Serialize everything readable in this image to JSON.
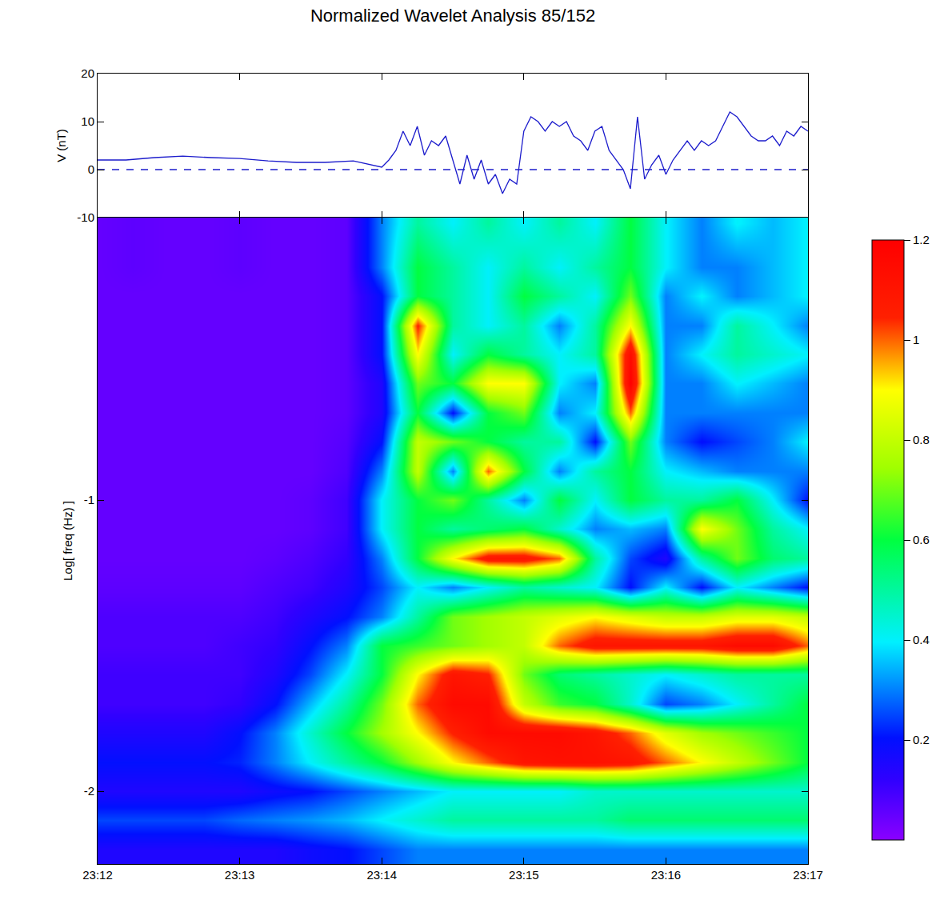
{
  "chart_data": [
    {
      "type": "line",
      "title": "Normalized Wavelet Analysis 85/152",
      "y_label": "V (nT)",
      "xlim": [
        1392,
        1397
      ],
      "xticks": [
        1392,
        1393,
        1394,
        1395,
        1396,
        1397
      ],
      "ylim": [
        -10,
        20
      ],
      "yticks": [
        -10,
        0,
        10,
        20
      ],
      "tick_labels": "y",
      "grid": false,
      "series": [
        {
          "color": "#1c1ccc",
          "line_style": "solid",
          "x": [
            1392.0,
            1392.2,
            1392.4,
            1392.6,
            1392.8,
            1393.0,
            1393.2,
            1393.4,
            1393.6,
            1393.8,
            1394.0,
            1394.05,
            1394.1,
            1394.15,
            1394.2,
            1394.25,
            1394.3,
            1394.35,
            1394.4,
            1394.45,
            1394.5,
            1394.55,
            1394.6,
            1394.65,
            1394.7,
            1394.75,
            1394.8,
            1394.85,
            1394.9,
            1394.95,
            1395.0,
            1395.05,
            1395.1,
            1395.15,
            1395.2,
            1395.25,
            1395.3,
            1395.35,
            1395.4,
            1395.45,
            1395.5,
            1395.55,
            1395.6,
            1395.65,
            1395.7,
            1395.75,
            1395.8,
            1395.85,
            1395.9,
            1395.95,
            1396.0,
            1396.05,
            1396.1,
            1396.15,
            1396.2,
            1396.25,
            1396.3,
            1396.35,
            1396.4,
            1396.45,
            1396.5,
            1396.55,
            1396.6,
            1396.65,
            1396.7,
            1396.75,
            1396.8,
            1396.85,
            1396.9,
            1396.95,
            1397.0
          ],
          "values": [
            2,
            2,
            2.5,
            2.8,
            2.5,
            2.3,
            1.8,
            1.5,
            1.5,
            1.8,
            0.5,
            2,
            4,
            8,
            5,
            9,
            3,
            6,
            5,
            7,
            2,
            -3,
            3,
            -2,
            2,
            -3,
            -1,
            -5,
            -2,
            -3,
            8,
            11,
            10,
            8,
            10,
            9,
            10,
            7,
            6,
            4,
            8,
            9,
            4,
            2,
            0,
            -4,
            11,
            -2,
            1,
            3,
            -1,
            2,
            4,
            6,
            4,
            6,
            5,
            6,
            9,
            12,
            11,
            9,
            7,
            6,
            6,
            7,
            5,
            8,
            7,
            9,
            8
          ]
        },
        {
          "color": "#1c1ccc",
          "line_style": "dash",
          "x": [
            1392,
            1397
          ],
          "values": [
            0,
            0
          ]
        }
      ]
    },
    {
      "type": "heatmap",
      "y_label": "Log[ freq (Hz) ]",
      "xlim": [
        1392,
        1397
      ],
      "xticks": [
        {
          "value": 1392,
          "label": "23:12"
        },
        {
          "value": 1393,
          "label": "23:13"
        },
        {
          "value": 1394,
          "label": "23:14"
        },
        {
          "value": 1395,
          "label": "23:15"
        },
        {
          "value": 1396,
          "label": "23:16"
        },
        {
          "value": 1397,
          "label": "23:17"
        }
      ],
      "ylim": [
        -2.25,
        -0.03
      ],
      "yticks": [
        -2,
        -1
      ],
      "grid": false,
      "zlim": [
        0,
        1.2
      ],
      "zticks": [
        0.2,
        0.4,
        0.6,
        0.8,
        1,
        1.2
      ],
      "x": [
        1392,
        1392.25,
        1392.5,
        1392.75,
        1393,
        1393.25,
        1393.5,
        1393.75,
        1394,
        1394.25,
        1394.5,
        1394.75,
        1395,
        1395.25,
        1395.5,
        1395.75,
        1396,
        1396.25,
        1396.5,
        1396.75,
        1397
      ],
      "y": [
        -2.2,
        -2.1,
        -2.0,
        -1.9,
        -1.8,
        -1.7,
        -1.6,
        -1.5,
        -1.4,
        -1.3,
        -1.2,
        -1.1,
        -1.0,
        -0.9,
        -0.8,
        -0.7,
        -0.6,
        -0.5,
        -0.4,
        -0.3,
        -0.2,
        -0.05
      ],
      "cells": [
        [
          0.15,
          0.15,
          0.15,
          0.15,
          0.15,
          0.15,
          0.18,
          0.2,
          0.25,
          0.3,
          0.3,
          0.3,
          0.3,
          0.3,
          0.3,
          0.3,
          0.3,
          0.3,
          0.3,
          0.3,
          0.3
        ],
        [
          0.25,
          0.25,
          0.25,
          0.25,
          0.28,
          0.3,
          0.32,
          0.35,
          0.4,
          0.45,
          0.5,
          0.5,
          0.5,
          0.5,
          0.5,
          0.55,
          0.55,
          0.55,
          0.55,
          0.55,
          0.55
        ],
        [
          0.15,
          0.15,
          0.15,
          0.15,
          0.15,
          0.18,
          0.2,
          0.25,
          0.3,
          0.35,
          0.4,
          0.4,
          0.4,
          0.4,
          0.45,
          0.45,
          0.45,
          0.45,
          0.45,
          0.45,
          0.45
        ],
        [
          0.2,
          0.2,
          0.2,
          0.2,
          0.22,
          0.3,
          0.4,
          0.5,
          0.6,
          0.75,
          0.9,
          1.0,
          1.1,
          1.12,
          1.12,
          1.1,
          1.0,
          0.9,
          0.8,
          0.7,
          0.6
        ],
        [
          0.15,
          0.15,
          0.15,
          0.15,
          0.2,
          0.3,
          0.45,
          0.6,
          0.75,
          0.9,
          1.05,
          1.15,
          1.15,
          1.15,
          1.1,
          1.0,
          0.85,
          0.75,
          0.7,
          0.65,
          0.6
        ],
        [
          0.1,
          0.1,
          0.1,
          0.1,
          0.12,
          0.2,
          0.35,
          0.5,
          0.7,
          1.0,
          1.15,
          1.15,
          0.8,
          0.65,
          0.6,
          0.45,
          0.25,
          0.3,
          0.4,
          0.5,
          0.6
        ],
        [
          0.1,
          0.1,
          0.1,
          0.1,
          0.1,
          0.15,
          0.25,
          0.4,
          0.6,
          0.9,
          1.1,
          1.05,
          0.7,
          0.55,
          0.5,
          0.45,
          0.4,
          0.45,
          0.5,
          0.5,
          0.5
        ],
        [
          0.08,
          0.08,
          0.08,
          0.08,
          0.1,
          0.12,
          0.2,
          0.3,
          0.6,
          0.65,
          0.7,
          0.75,
          0.8,
          1.0,
          1.1,
          1.1,
          1.1,
          1.1,
          1.15,
          1.15,
          1.0
        ],
        [
          0.08,
          0.08,
          0.08,
          0.08,
          0.08,
          0.1,
          0.15,
          0.2,
          0.3,
          0.5,
          0.7,
          0.75,
          0.8,
          0.85,
          0.9,
          0.85,
          0.8,
          0.8,
          0.85,
          0.85,
          0.8
        ],
        [
          0.06,
          0.06,
          0.06,
          0.06,
          0.06,
          0.08,
          0.1,
          0.15,
          0.25,
          0.4,
          0.3,
          0.4,
          0.5,
          0.45,
          0.4,
          0.2,
          0.4,
          0.2,
          0.4,
          0.3,
          0.2
        ],
        [
          0.05,
          0.05,
          0.05,
          0.05,
          0.05,
          0.06,
          0.08,
          0.12,
          0.3,
          0.6,
          0.9,
          1.1,
          1.1,
          1.0,
          0.5,
          0.25,
          0.15,
          0.5,
          0.7,
          0.55,
          0.5
        ],
        [
          0.05,
          0.05,
          0.05,
          0.05,
          0.05,
          0.05,
          0.06,
          0.1,
          0.4,
          0.6,
          0.5,
          0.55,
          0.6,
          0.45,
          0.3,
          0.35,
          0.3,
          0.9,
          0.7,
          0.5,
          0.4
        ],
        [
          0.05,
          0.05,
          0.05,
          0.05,
          0.05,
          0.05,
          0.06,
          0.1,
          0.4,
          0.6,
          0.7,
          0.5,
          0.3,
          0.6,
          0.4,
          0.6,
          0.5,
          0.5,
          0.6,
          0.4,
          0.2
        ],
        [
          0.05,
          0.05,
          0.05,
          0.05,
          0.05,
          0.05,
          0.05,
          0.08,
          0.3,
          0.8,
          0.3,
          1.0,
          0.6,
          0.3,
          0.5,
          0.6,
          0.4,
          0.35,
          0.3,
          0.3,
          0.3
        ],
        [
          0.05,
          0.05,
          0.05,
          0.05,
          0.05,
          0.05,
          0.05,
          0.07,
          0.2,
          0.8,
          0.7,
          0.6,
          0.5,
          0.5,
          0.2,
          0.7,
          0.3,
          0.2,
          0.25,
          0.3,
          0.4
        ],
        [
          0.05,
          0.05,
          0.05,
          0.05,
          0.05,
          0.05,
          0.05,
          0.06,
          0.15,
          0.6,
          0.2,
          0.6,
          0.7,
          0.3,
          0.4,
          1.0,
          0.3,
          0.3,
          0.3,
          0.3,
          0.3
        ],
        [
          0.05,
          0.05,
          0.05,
          0.05,
          0.05,
          0.05,
          0.05,
          0.06,
          0.15,
          0.7,
          0.6,
          0.9,
          0.9,
          0.4,
          0.3,
          1.2,
          0.3,
          0.3,
          0.4,
          0.35,
          0.3
        ],
        [
          0.05,
          0.05,
          0.05,
          0.05,
          0.05,
          0.05,
          0.05,
          0.06,
          0.2,
          0.9,
          0.4,
          0.6,
          0.5,
          0.4,
          0.5,
          1.15,
          0.3,
          0.4,
          0.5,
          0.45,
          0.4
        ],
        [
          0.05,
          0.05,
          0.05,
          0.05,
          0.05,
          0.05,
          0.05,
          0.06,
          0.2,
          1.05,
          0.5,
          0.4,
          0.5,
          0.3,
          0.5,
          0.9,
          0.3,
          0.3,
          0.5,
          0.4,
          0.3
        ],
        [
          0.05,
          0.05,
          0.05,
          0.05,
          0.05,
          0.05,
          0.05,
          0.06,
          0.2,
          0.6,
          0.5,
          0.4,
          0.6,
          0.5,
          0.4,
          0.7,
          0.3,
          0.4,
          0.3,
          0.35,
          0.4
        ],
        [
          0.05,
          0.06,
          0.05,
          0.05,
          0.06,
          0.05,
          0.05,
          0.06,
          0.3,
          0.6,
          0.5,
          0.4,
          0.5,
          0.4,
          0.5,
          0.6,
          0.4,
          0.3,
          0.3,
          0.35,
          0.4
        ],
        [
          0.05,
          0.06,
          0.05,
          0.05,
          0.06,
          0.05,
          0.05,
          0.06,
          0.3,
          0.5,
          0.4,
          0.5,
          0.4,
          0.5,
          0.4,
          0.6,
          0.4,
          0.3,
          0.4,
          0.35,
          0.4
        ]
      ]
    }
  ]
}
